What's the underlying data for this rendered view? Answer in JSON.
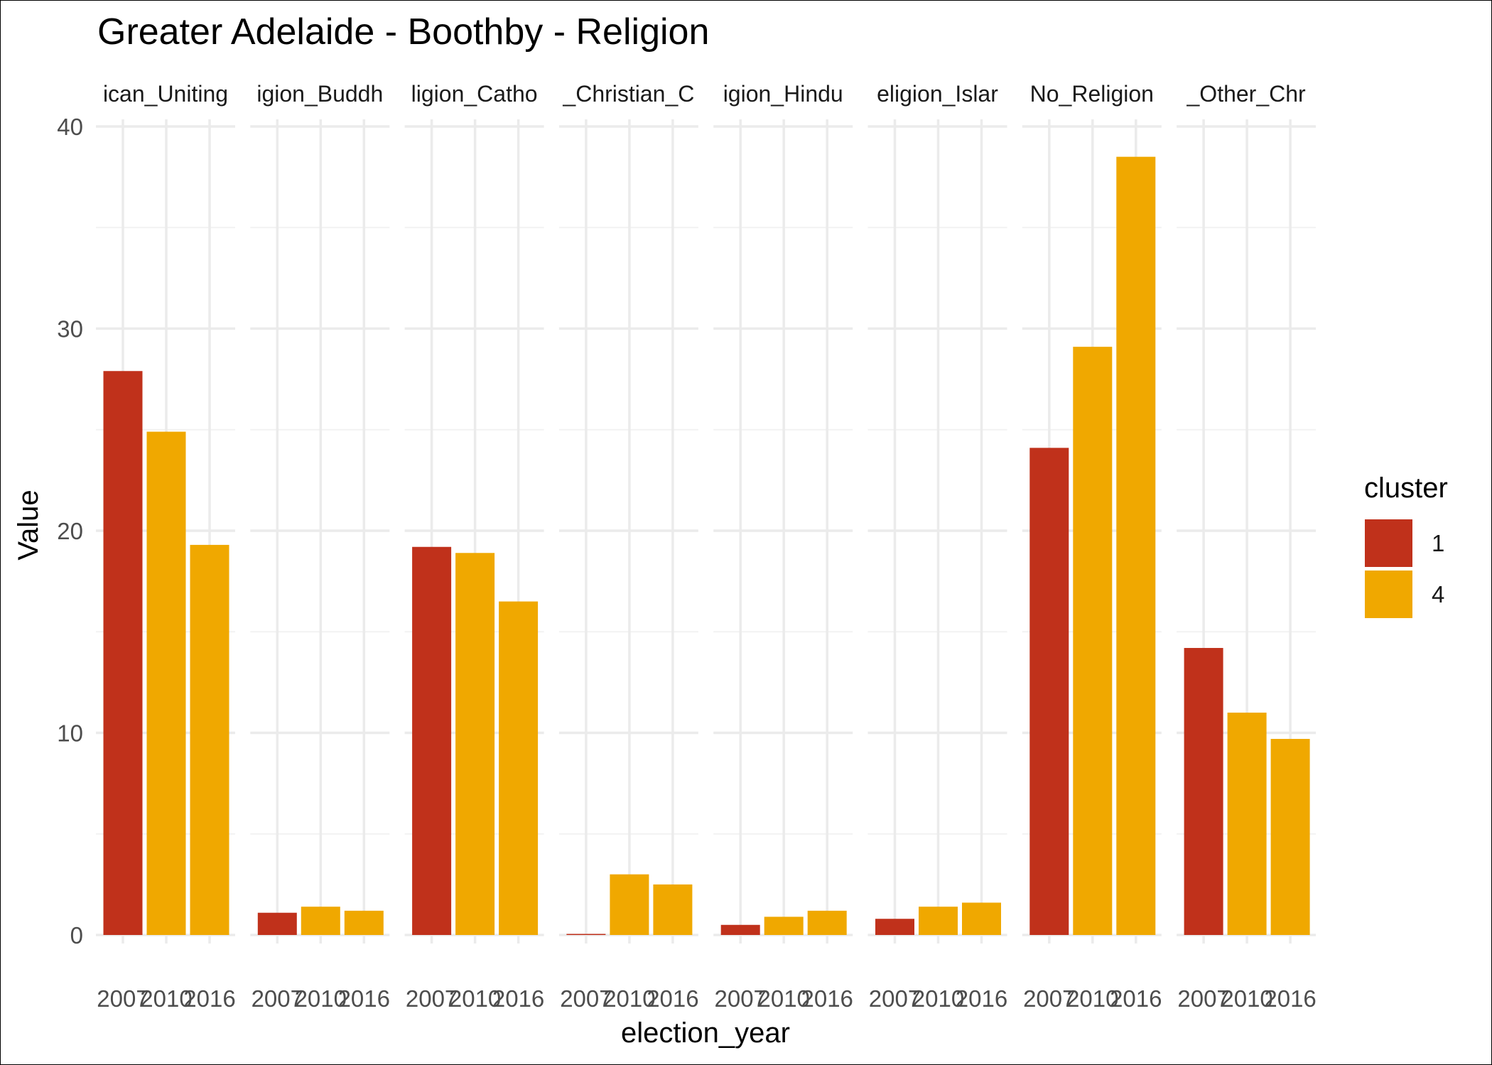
{
  "chart_data": {
    "type": "bar",
    "title": "Greater Adelaide - Boothby - Religion",
    "xlabel": "election_year",
    "ylabel": "Value",
    "ylim": [
      0,
      40
    ],
    "y_ticks": [
      0,
      10,
      20,
      30,
      40
    ],
    "grid": true,
    "legend": {
      "title": "cluster",
      "position": "right",
      "entries": [
        "1",
        "4"
      ]
    },
    "colors": {
      "1": "#c0311b",
      "4": "#f0a800"
    },
    "x_tick_labels": [
      "2007",
      "2010",
      "2016"
    ],
    "panels": [
      {
        "strip": "ican_Uniting",
        "bars": [
          {
            "x": "2007",
            "value": 27.9,
            "cluster": "1"
          },
          {
            "x": "2010",
            "value": 24.9,
            "cluster": "4"
          },
          {
            "x": "2016",
            "value": 19.3,
            "cluster": "4"
          }
        ]
      },
      {
        "strip": "igion_Buddh",
        "bars": [
          {
            "x": "2007",
            "value": 1.1,
            "cluster": "1"
          },
          {
            "x": "2010",
            "value": 1.4,
            "cluster": "4"
          },
          {
            "x": "2016",
            "value": 1.2,
            "cluster": "4"
          }
        ]
      },
      {
        "strip": "ligion_Catho",
        "bars": [
          {
            "x": "2007",
            "value": 19.2,
            "cluster": "1"
          },
          {
            "x": "2010",
            "value": 18.9,
            "cluster": "4"
          },
          {
            "x": "2016",
            "value": 16.5,
            "cluster": "4"
          }
        ]
      },
      {
        "strip": "_Christian_C",
        "bars": [
          {
            "x": "2007",
            "value": 0.05,
            "cluster": "1"
          },
          {
            "x": "2010",
            "value": 3.0,
            "cluster": "4"
          },
          {
            "x": "2016",
            "value": 2.5,
            "cluster": "4"
          }
        ]
      },
      {
        "strip": "igion_Hindu",
        "bars": [
          {
            "x": "2007",
            "value": 0.5,
            "cluster": "1"
          },
          {
            "x": "2010",
            "value": 0.9,
            "cluster": "4"
          },
          {
            "x": "2016",
            "value": 1.2,
            "cluster": "4"
          }
        ]
      },
      {
        "strip": "eligion_Islar",
        "bars": [
          {
            "x": "2007",
            "value": 0.8,
            "cluster": "1"
          },
          {
            "x": "2010",
            "value": 1.4,
            "cluster": "4"
          },
          {
            "x": "2016",
            "value": 1.6,
            "cluster": "4"
          }
        ]
      },
      {
        "strip": "No_Religion",
        "bars": [
          {
            "x": "2007",
            "value": 24.1,
            "cluster": "1"
          },
          {
            "x": "2010",
            "value": 29.1,
            "cluster": "4"
          },
          {
            "x": "2016",
            "value": 38.5,
            "cluster": "4"
          }
        ]
      },
      {
        "strip": "_Other_Chr",
        "bars": [
          {
            "x": "2007",
            "value": 14.2,
            "cluster": "1"
          },
          {
            "x": "2010",
            "value": 11.0,
            "cluster": "4"
          },
          {
            "x": "2016",
            "value": 9.7,
            "cluster": "4"
          }
        ]
      }
    ]
  }
}
